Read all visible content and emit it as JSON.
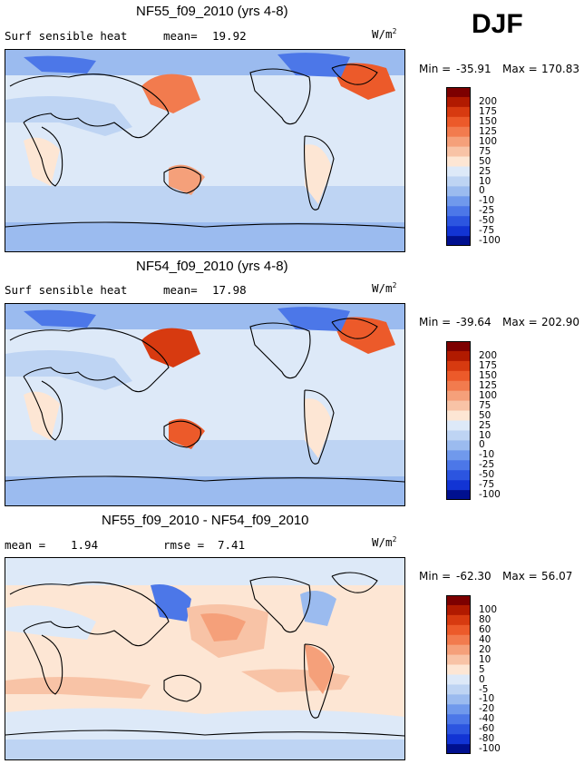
{
  "season": "DJF",
  "units_base": "W/m",
  "units_exp": "2",
  "panels": [
    {
      "title": "NF55_f09_2010 (yrs 4-8)",
      "subtitle_left": "Surf sensible heat",
      "stat1_label": "mean=",
      "stat1_value": "19.92",
      "min_label": "Min =",
      "min_value": "-35.91",
      "max_label": "Max =",
      "max_value": "170.83",
      "levels": [
        "200",
        "175",
        "150",
        "125",
        "100",
        "75",
        "50",
        "25",
        "10",
        "0",
        "-10",
        "-25",
        "-50",
        "-75",
        "-100"
      ]
    },
    {
      "title": "NF54_f09_2010 (yrs 4-8)",
      "subtitle_left": "Surf sensible heat",
      "stat1_label": "mean=",
      "stat1_value": "17.98",
      "min_label": "Min =",
      "min_value": "-39.64",
      "max_label": "Max =",
      "max_value": "202.90",
      "levels": [
        "200",
        "175",
        "150",
        "125",
        "100",
        "75",
        "50",
        "25",
        "10",
        "0",
        "-10",
        "-25",
        "-50",
        "-75",
        "-100"
      ]
    },
    {
      "title": "NF55_f09_2010 - NF54_f09_2010",
      "stat1_label": "mean =",
      "stat1_value": "1.94",
      "stat2_label": "rmse =",
      "stat2_value": "7.41",
      "min_label": "Min =",
      "min_value": "-62.30",
      "max_label": "Max =",
      "max_value": "56.07",
      "levels": [
        "100",
        "80",
        "60",
        "40",
        "20",
        "10",
        "5",
        "0",
        "-5",
        "-10",
        "-20",
        "-40",
        "-60",
        "-80",
        "-100"
      ]
    }
  ],
  "palette": [
    "#7d0000",
    "#b11a00",
    "#d73a10",
    "#ec5a2a",
    "#f27b4e",
    "#f5a07a",
    "#f8c3a6",
    "#fde6d4",
    "#dde9f8",
    "#bed4f3",
    "#9bbbef",
    "#7099ec",
    "#4c77e8",
    "#2c55e0",
    "#1234d4",
    "#00108f"
  ],
  "map_colors": {
    "ocean": "#dde9f8",
    "cool": "#bed4f3",
    "cold": "#7099ec",
    "warm": "#fde6d4",
    "hot": "#f27b4e",
    "coast": "#000000"
  }
}
